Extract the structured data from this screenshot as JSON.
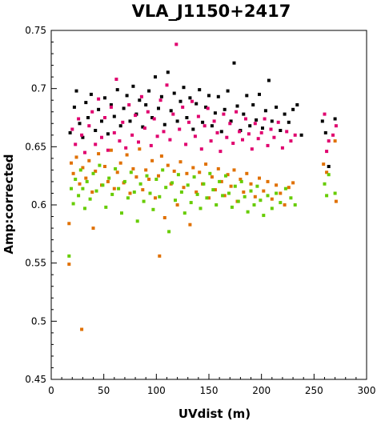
{
  "chart_data": {
    "type": "scatter",
    "title": "VLA_J1150+2417",
    "xlabel": "UVdist (m)",
    "ylabel": "Amp:corrected",
    "xlim": [
      0,
      300
    ],
    "ylim": [
      0.45,
      0.75
    ],
    "x_ticks": [
      0,
      50,
      100,
      150,
      200,
      250,
      300
    ],
    "x_tick_labels": [
      "0",
      "50",
      "100",
      "150",
      "200",
      "250",
      "300"
    ],
    "y_ticks": [
      0.45,
      0.5,
      0.55,
      0.6,
      0.65,
      0.7,
      0.75
    ],
    "y_tick_labels": [
      "0.45",
      "0.5",
      "0.55",
      "0.6",
      "0.65",
      "0.7",
      "0.75"
    ],
    "grid": false,
    "legend": "none",
    "series": [
      {
        "color": "#000000",
        "values": [
          [
            18,
            0.662
          ],
          [
            22,
            0.684
          ],
          [
            24,
            0.698
          ],
          [
            27,
            0.67
          ],
          [
            30,
            0.658
          ],
          [
            33,
            0.688
          ],
          [
            35,
            0.675
          ],
          [
            38,
            0.695
          ],
          [
            42,
            0.664
          ],
          [
            45,
            0.682
          ],
          [
            48,
            0.672
          ],
          [
            51,
            0.692
          ],
          [
            54,
            0.661
          ],
          [
            57,
            0.686
          ],
          [
            60,
            0.676
          ],
          [
            63,
            0.699
          ],
          [
            66,
            0.668
          ],
          [
            69,
            0.683
          ],
          [
            72,
            0.694
          ],
          [
            75,
            0.672
          ],
          [
            78,
            0.702
          ],
          [
            81,
            0.678
          ],
          [
            84,
            0.69
          ],
          [
            87,
            0.667
          ],
          [
            90,
            0.686
          ],
          [
            93,
            0.698
          ],
          [
            96,
            0.675
          ],
          [
            99,
            0.71
          ],
          [
            102,
            0.683
          ],
          [
            105,
            0.693
          ],
          [
            108,
            0.669
          ],
          [
            111,
            0.714
          ],
          [
            114,
            0.681
          ],
          [
            117,
            0.696
          ],
          [
            120,
            0.672
          ],
          [
            123,
            0.689
          ],
          [
            126,
            0.701
          ],
          [
            129,
            0.675
          ],
          [
            132,
            0.692
          ],
          [
            135,
            0.665
          ],
          [
            138,
            0.687
          ],
          [
            141,
            0.699
          ],
          [
            144,
            0.671
          ],
          [
            147,
            0.684
          ],
          [
            150,
            0.694
          ],
          [
            153,
            0.668
          ],
          [
            156,
            0.679
          ],
          [
            159,
            0.693
          ],
          [
            162,
            0.663
          ],
          [
            165,
            0.682
          ],
          [
            168,
            0.698
          ],
          [
            171,
            0.672
          ],
          [
            174,
            0.722
          ],
          [
            177,
            0.685
          ],
          [
            180,
            0.664
          ],
          [
            183,
            0.678
          ],
          [
            186,
            0.694
          ],
          [
            189,
            0.668
          ],
          [
            192,
            0.686
          ],
          [
            195,
            0.673
          ],
          [
            198,
            0.695
          ],
          [
            201,
            0.666
          ],
          [
            204,
            0.681
          ],
          [
            207,
            0.707
          ],
          [
            210,
            0.672
          ],
          [
            214,
            0.684
          ],
          [
            218,
            0.664
          ],
          [
            222,
            0.678
          ],
          [
            226,
            0.671
          ],
          [
            230,
            0.682
          ],
          [
            234,
            0.686
          ],
          [
            238,
            0.66
          ],
          [
            258,
            0.672
          ],
          [
            261,
            0.662
          ],
          [
            264,
            0.633
          ],
          [
            270,
            0.674
          ]
        ]
      },
      {
        "color": "#e0006e",
        "values": [
          [
            20,
            0.665
          ],
          [
            23,
            0.652
          ],
          [
            26,
            0.674
          ],
          [
            29,
            0.66
          ],
          [
            32,
            0.645
          ],
          [
            36,
            0.668
          ],
          [
            39,
            0.68
          ],
          [
            42,
            0.652
          ],
          [
            45,
            0.691
          ],
          [
            48,
            0.658
          ],
          [
            51,
            0.675
          ],
          [
            54,
            0.647
          ],
          [
            57,
            0.684
          ],
          [
            60,
            0.662
          ],
          [
            62,
            0.708
          ],
          [
            65,
            0.655
          ],
          [
            68,
            0.671
          ],
          [
            71,
            0.649
          ],
          [
            74,
            0.686
          ],
          [
            77,
            0.66
          ],
          [
            80,
            0.677
          ],
          [
            83,
            0.654
          ],
          [
            86,
            0.693
          ],
          [
            89,
            0.666
          ],
          [
            92,
            0.68
          ],
          [
            95,
            0.651
          ],
          [
            98,
            0.674
          ],
          [
            101,
            0.659
          ],
          [
            104,
            0.69
          ],
          [
            107,
            0.663
          ],
          [
            110,
            0.703
          ],
          [
            113,
            0.656
          ],
          [
            116,
            0.678
          ],
          [
            119,
            0.738
          ],
          [
            122,
            0.665
          ],
          [
            125,
            0.684
          ],
          [
            128,
            0.652
          ],
          [
            131,
            0.671
          ],
          [
            134,
            0.689
          ],
          [
            137,
            0.659
          ],
          [
            140,
            0.676
          ],
          [
            143,
            0.648
          ],
          [
            146,
            0.668
          ],
          [
            149,
            0.683
          ],
          [
            152,
            0.655
          ],
          [
            155,
            0.672
          ],
          [
            158,
            0.662
          ],
          [
            161,
            0.646
          ],
          [
            164,
            0.678
          ],
          [
            167,
            0.658
          ],
          [
            170,
            0.67
          ],
          [
            173,
            0.653
          ],
          [
            176,
            0.68
          ],
          [
            179,
            0.663
          ],
          [
            182,
            0.656
          ],
          [
            185,
            0.674
          ],
          [
            188,
            0.661
          ],
          [
            191,
            0.648
          ],
          [
            194,
            0.67
          ],
          [
            197,
            0.657
          ],
          [
            200,
            0.662
          ],
          [
            203,
            0.674
          ],
          [
            206,
            0.651
          ],
          [
            209,
            0.665
          ],
          [
            212,
            0.658
          ],
          [
            216,
            0.671
          ],
          [
            220,
            0.649
          ],
          [
            224,
            0.663
          ],
          [
            228,
            0.655
          ],
          [
            232,
            0.66
          ],
          [
            260,
            0.678
          ],
          [
            262,
            0.646
          ],
          [
            264,
            0.655
          ],
          [
            268,
            0.66
          ],
          [
            271,
            0.668
          ]
        ]
      },
      {
        "color": "#e07000",
        "values": [
          [
            17,
            0.584
          ],
          [
            17,
            0.549
          ],
          [
            19,
            0.636
          ],
          [
            21,
            0.627
          ],
          [
            24,
            0.641
          ],
          [
            27,
            0.618
          ],
          [
            29,
            0.493
          ],
          [
            30,
            0.632
          ],
          [
            33,
            0.623
          ],
          [
            36,
            0.638
          ],
          [
            39,
            0.611
          ],
          [
            40,
            0.58
          ],
          [
            42,
            0.629
          ],
          [
            45,
            0.644
          ],
          [
            48,
            0.617
          ],
          [
            51,
            0.633
          ],
          [
            54,
            0.62
          ],
          [
            57,
            0.647
          ],
          [
            60,
            0.614
          ],
          [
            63,
            0.628
          ],
          [
            66,
            0.636
          ],
          [
            69,
            0.619
          ],
          [
            72,
            0.643
          ],
          [
            75,
            0.61
          ],
          [
            78,
            0.631
          ],
          [
            81,
            0.624
          ],
          [
            84,
            0.648
          ],
          [
            87,
            0.613
          ],
          [
            90,
            0.63
          ],
          [
            93,
            0.622
          ],
          [
            96,
            0.638
          ],
          [
            99,
            0.606
          ],
          [
            102,
            0.625
          ],
          [
            103,
            0.556
          ],
          [
            105,
            0.642
          ],
          [
            108,
            0.589
          ],
          [
            111,
            0.634
          ],
          [
            114,
            0.618
          ],
          [
            117,
            0.629
          ],
          [
            120,
            0.6
          ],
          [
            123,
            0.637
          ],
          [
            126,
            0.615
          ],
          [
            129,
            0.627
          ],
          [
            132,
            0.583
          ],
          [
            135,
            0.632
          ],
          [
            138,
            0.611
          ],
          [
            141,
            0.628
          ],
          [
            144,
            0.618
          ],
          [
            147,
            0.635
          ],
          [
            150,
            0.606
          ],
          [
            153,
            0.624
          ],
          [
            156,
            0.613
          ],
          [
            159,
            0.631
          ],
          [
            162,
            0.62
          ],
          [
            165,
            0.608
          ],
          [
            168,
            0.626
          ],
          [
            171,
            0.616
          ],
          [
            174,
            0.63
          ],
          [
            177,
            0.603
          ],
          [
            180,
            0.622
          ],
          [
            183,
            0.611
          ],
          [
            186,
            0.627
          ],
          [
            190,
            0.618
          ],
          [
            194,
            0.607
          ],
          [
            198,
            0.623
          ],
          [
            202,
            0.612
          ],
          [
            206,
            0.62
          ],
          [
            210,
            0.605
          ],
          [
            214,
            0.617
          ],
          [
            218,
            0.61
          ],
          [
            222,
            0.6
          ],
          [
            226,
            0.615
          ],
          [
            230,
            0.619
          ],
          [
            259,
            0.635
          ],
          [
            262,
            0.628
          ],
          [
            270,
            0.655
          ],
          [
            271,
            0.603
          ]
        ]
      },
      {
        "color": "#66cc00",
        "values": [
          [
            17,
            0.556
          ],
          [
            19,
            0.614
          ],
          [
            21,
            0.601
          ],
          [
            23,
            0.622
          ],
          [
            26,
            0.608
          ],
          [
            28,
            0.63
          ],
          [
            30,
            0.614
          ],
          [
            32,
            0.597
          ],
          [
            34,
            0.62
          ],
          [
            37,
            0.605
          ],
          [
            40,
            0.627
          ],
          [
            43,
            0.612
          ],
          [
            46,
            0.634
          ],
          [
            49,
            0.617
          ],
          [
            52,
            0.598
          ],
          [
            55,
            0.623
          ],
          [
            58,
            0.609
          ],
          [
            61,
            0.631
          ],
          [
            64,
            0.614
          ],
          [
            67,
            0.593
          ],
          [
            70,
            0.62
          ],
          [
            73,
            0.606
          ],
          [
            76,
            0.628
          ],
          [
            79,
            0.611
          ],
          [
            82,
            0.586
          ],
          [
            85,
            0.618
          ],
          [
            88,
            0.603
          ],
          [
            91,
            0.625
          ],
          [
            94,
            0.61
          ],
          [
            97,
            0.596
          ],
          [
            100,
            0.622
          ],
          [
            103,
            0.607
          ],
          [
            106,
            0.63
          ],
          [
            109,
            0.615
          ],
          [
            112,
            0.577
          ],
          [
            115,
            0.619
          ],
          [
            118,
            0.604
          ],
          [
            121,
            0.626
          ],
          [
            124,
            0.611
          ],
          [
            127,
            0.593
          ],
          [
            130,
            0.617
          ],
          [
            133,
            0.602
          ],
          [
            136,
            0.624
          ],
          [
            139,
            0.609
          ],
          [
            142,
            0.597
          ],
          [
            145,
            0.618
          ],
          [
            148,
            0.606
          ],
          [
            151,
            0.627
          ],
          [
            154,
            0.613
          ],
          [
            157,
            0.6
          ],
          [
            160,
            0.62
          ],
          [
            163,
            0.608
          ],
          [
            166,
            0.625
          ],
          [
            169,
            0.61
          ],
          [
            172,
            0.598
          ],
          [
            175,
            0.616
          ],
          [
            178,
            0.603
          ],
          [
            181,
            0.62
          ],
          [
            184,
            0.607
          ],
          [
            187,
            0.594
          ],
          [
            190,
            0.612
          ],
          [
            193,
            0.6
          ],
          [
            196,
            0.616
          ],
          [
            199,
            0.604
          ],
          [
            202,
            0.591
          ],
          [
            206,
            0.608
          ],
          [
            210,
            0.597
          ],
          [
            214,
            0.61
          ],
          [
            218,
            0.602
          ],
          [
            223,
            0.614
          ],
          [
            228,
            0.606
          ],
          [
            232,
            0.6
          ],
          [
            260,
            0.618
          ],
          [
            262,
            0.608
          ],
          [
            264,
            0.626
          ],
          [
            270,
            0.61
          ]
        ]
      }
    ]
  }
}
